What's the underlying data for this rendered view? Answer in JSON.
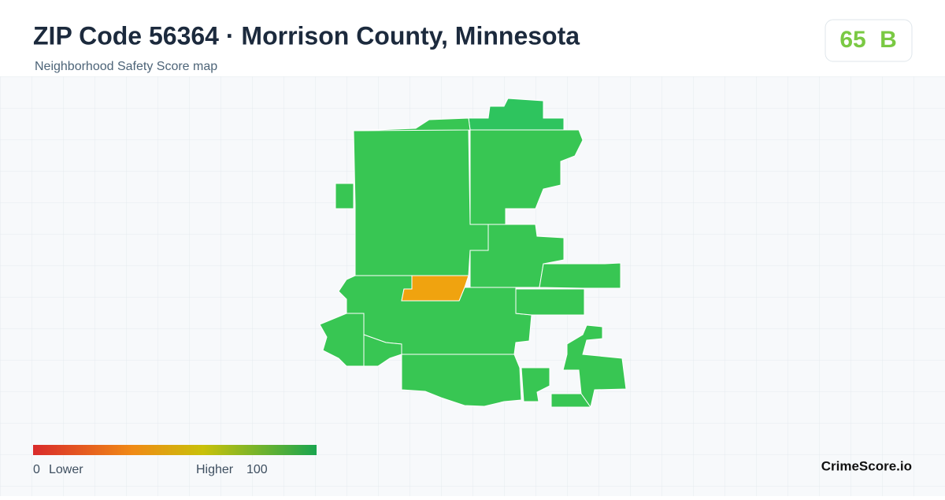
{
  "header": {
    "title": "ZIP Code 56364 · Morrison County, Minnesota",
    "subtitle": "Neighborhood Safety Score map"
  },
  "score": {
    "value": 65,
    "grade": "B"
  },
  "legend": {
    "min": 0,
    "min_label": "Lower",
    "max_label": "Higher",
    "max": 100
  },
  "brand": "CrimeScore.io"
}
